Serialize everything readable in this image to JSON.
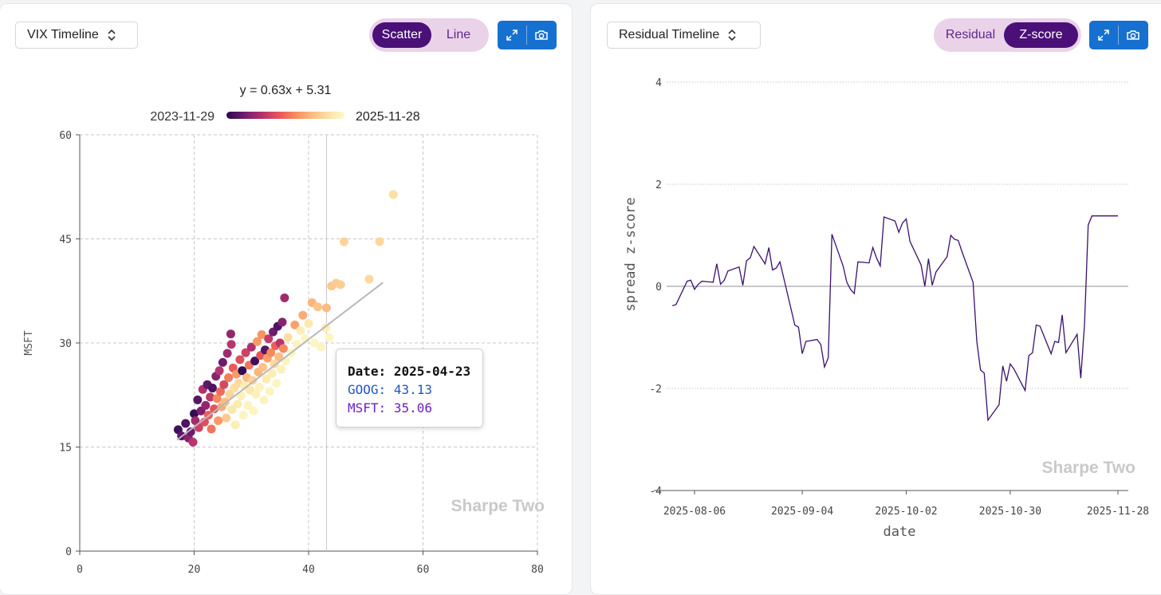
{
  "left": {
    "selector_label": "VIX Timeline",
    "toggle": {
      "options": [
        "Scatter",
        "Line"
      ],
      "active": "Scatter"
    },
    "watermark": "Sharpe Two",
    "colorbar": {
      "start_label": "2023-11-29",
      "end_label": "2025-11-28"
    },
    "tooltip": {
      "date_label": "Date:",
      "date_value": "2025-04-23",
      "x_label": "GOOG:",
      "x_value": "43.13",
      "y_label": "MSFT:",
      "y_value": "35.06"
    }
  },
  "right": {
    "selector_label": "Residual Timeline",
    "toggle": {
      "options": [
        "Residual",
        "Z-score"
      ],
      "active": "Z-score"
    },
    "watermark": "Sharpe Two"
  },
  "colors": {
    "accent": "#4a1078",
    "toolbar_blue": "#1670d0",
    "toggle_bg": "#ead2e9",
    "line": "#3b0f70",
    "regression_line": "#b7b7bd",
    "colorbar": [
      "#2a0a52",
      "#6b1a6e",
      "#b2326d",
      "#e8565b",
      "#f9925f",
      "#fdc187",
      "#fde9ad",
      "#fcf8c8"
    ]
  },
  "chart_data": [
    {
      "type": "scatter",
      "title": "y = 0.63x + 5.31",
      "xlabel": "",
      "ylabel": "MSFT",
      "xlim": [
        0,
        80
      ],
      "ylim": [
        0,
        60
      ],
      "xticks": [
        "0",
        "20",
        "40",
        "60",
        "80"
      ],
      "yticks": [
        "0",
        "15",
        "30",
        "45",
        "60"
      ],
      "grid": true,
      "legend": "top-center colorbar",
      "regression": {
        "slope": 0.63,
        "intercept": 5.31,
        "x_range": [
          17,
          53
        ]
      },
      "crosshair_x": 43.13,
      "points": [
        {
          "x": 17.2,
          "y": 17.5,
          "t": 0.05
        },
        {
          "x": 17.8,
          "y": 16.6,
          "t": 0.12
        },
        {
          "x": 18.5,
          "y": 18.4,
          "t": 0.08
        },
        {
          "x": 19.0,
          "y": 16.3,
          "t": 0.2
        },
        {
          "x": 19.4,
          "y": 17.2,
          "t": 0.15
        },
        {
          "x": 19.8,
          "y": 15.7,
          "t": 0.3
        },
        {
          "x": 20.0,
          "y": 19.8,
          "t": 0.02
        },
        {
          "x": 20.2,
          "y": 18.8,
          "t": 0.25
        },
        {
          "x": 20.6,
          "y": 21.8,
          "t": 0.1
        },
        {
          "x": 20.8,
          "y": 17.8,
          "t": 0.35
        },
        {
          "x": 21.2,
          "y": 20.2,
          "t": 0.18
        },
        {
          "x": 21.5,
          "y": 23.3,
          "t": 0.28
        },
        {
          "x": 21.8,
          "y": 18.6,
          "t": 0.4
        },
        {
          "x": 22.0,
          "y": 21.0,
          "t": 0.22
        },
        {
          "x": 22.3,
          "y": 24.0,
          "t": 0.12
        },
        {
          "x": 22.5,
          "y": 19.6,
          "t": 0.45
        },
        {
          "x": 22.8,
          "y": 22.2,
          "t": 0.32
        },
        {
          "x": 23.0,
          "y": 17.6,
          "t": 0.5
        },
        {
          "x": 23.2,
          "y": 23.5,
          "t": 0.08
        },
        {
          "x": 23.5,
          "y": 20.5,
          "t": 0.42
        },
        {
          "x": 23.8,
          "y": 25.2,
          "t": 0.2
        },
        {
          "x": 24.0,
          "y": 22.0,
          "t": 0.55
        },
        {
          "x": 24.2,
          "y": 18.8,
          "t": 0.6
        },
        {
          "x": 24.4,
          "y": 26.0,
          "t": 0.3
        },
        {
          "x": 24.6,
          "y": 23.0,
          "t": 0.48
        },
        {
          "x": 24.8,
          "y": 20.8,
          "t": 0.65
        },
        {
          "x": 25.0,
          "y": 27.2,
          "t": 0.15
        },
        {
          "x": 25.2,
          "y": 24.0,
          "t": 0.38
        },
        {
          "x": 25.4,
          "y": 21.5,
          "t": 0.7
        },
        {
          "x": 25.6,
          "y": 19.2,
          "t": 0.75
        },
        {
          "x": 25.8,
          "y": 28.5,
          "t": 0.25
        },
        {
          "x": 26.0,
          "y": 25.0,
          "t": 0.52
        },
        {
          "x": 26.2,
          "y": 22.6,
          "t": 0.78
        },
        {
          "x": 26.4,
          "y": 31.3,
          "t": 0.22
        },
        {
          "x": 26.5,
          "y": 29.8,
          "t": 0.3
        },
        {
          "x": 26.6,
          "y": 20.4,
          "t": 0.85
        },
        {
          "x": 26.8,
          "y": 26.4,
          "t": 0.44
        },
        {
          "x": 27.0,
          "y": 23.5,
          "t": 0.82
        },
        {
          "x": 27.2,
          "y": 18.2,
          "t": 0.9
        },
        {
          "x": 27.4,
          "y": 25.5,
          "t": 0.6
        },
        {
          "x": 27.6,
          "y": 21.2,
          "t": 0.88
        },
        {
          "x": 27.8,
          "y": 24.2,
          "t": 0.8
        },
        {
          "x": 28.0,
          "y": 27.6,
          "t": 0.4
        },
        {
          "x": 28.2,
          "y": 22.4,
          "t": 0.92
        },
        {
          "x": 28.4,
          "y": 26.0,
          "t": 0.02
        },
        {
          "x": 28.6,
          "y": 19.6,
          "t": 0.95
        },
        {
          "x": 28.8,
          "y": 23.8,
          "t": 0.9
        },
        {
          "x": 29.0,
          "y": 28.6,
          "t": 0.35
        },
        {
          "x": 29.2,
          "y": 25.0,
          "t": 0.7
        },
        {
          "x": 29.4,
          "y": 21.0,
          "t": 0.96
        },
        {
          "x": 29.6,
          "y": 26.8,
          "t": 0.5
        },
        {
          "x": 29.8,
          "y": 23.2,
          "t": 0.85
        },
        {
          "x": 30.0,
          "y": 29.4,
          "t": 0.28
        },
        {
          "x": 30.2,
          "y": 24.6,
          "t": 0.78
        },
        {
          "x": 30.4,
          "y": 20.2,
          "t": 0.97
        },
        {
          "x": 30.6,
          "y": 27.4,
          "t": 0.05
        },
        {
          "x": 30.8,
          "y": 22.6,
          "t": 0.93
        },
        {
          "x": 31.0,
          "y": 30.2,
          "t": 0.6
        },
        {
          "x": 31.2,
          "y": 25.8,
          "t": 0.68
        },
        {
          "x": 31.4,
          "y": 23.6,
          "t": 0.94
        },
        {
          "x": 31.6,
          "y": 28.2,
          "t": 0.42
        },
        {
          "x": 31.8,
          "y": 31.2,
          "t": 0.58
        },
        {
          "x": 32.0,
          "y": 26.5,
          "t": 0.72
        },
        {
          "x": 32.2,
          "y": 21.8,
          "t": 0.96
        },
        {
          "x": 32.4,
          "y": 29.0,
          "t": 0.1
        },
        {
          "x": 32.6,
          "y": 24.8,
          "t": 0.88
        },
        {
          "x": 32.8,
          "y": 27.8,
          "t": 0.62
        },
        {
          "x": 33.0,
          "y": 30.6,
          "t": 0.32
        },
        {
          "x": 33.2,
          "y": 23.0,
          "t": 0.95
        },
        {
          "x": 33.4,
          "y": 28.6,
          "t": 0.55
        },
        {
          "x": 33.6,
          "y": 25.6,
          "t": 0.9
        },
        {
          "x": 33.8,
          "y": 31.6,
          "t": 0.15
        },
        {
          "x": 34.0,
          "y": 27.0,
          "t": 0.8
        },
        {
          "x": 34.2,
          "y": 29.6,
          "t": 0.45
        },
        {
          "x": 34.4,
          "y": 24.2,
          "t": 0.97
        },
        {
          "x": 34.6,
          "y": 32.4,
          "t": 0.08
        },
        {
          "x": 34.8,
          "y": 28.0,
          "t": 0.7
        },
        {
          "x": 35.0,
          "y": 30.0,
          "t": 0.3
        },
        {
          "x": 35.2,
          "y": 26.2,
          "t": 0.93
        },
        {
          "x": 35.4,
          "y": 33.0,
          "t": 0.2
        },
        {
          "x": 35.6,
          "y": 29.2,
          "t": 0.55
        },
        {
          "x": 35.8,
          "y": 36.5,
          "t": 0.25
        },
        {
          "x": 36.0,
          "y": 27.4,
          "t": 0.96
        },
        {
          "x": 36.4,
          "y": 30.8,
          "t": 0.82
        },
        {
          "x": 37.0,
          "y": 28.6,
          "t": 0.97
        },
        {
          "x": 37.6,
          "y": 32.6,
          "t": 0.62
        },
        {
          "x": 38.0,
          "y": 29.8,
          "t": 0.95
        },
        {
          "x": 38.6,
          "y": 31.8,
          "t": 0.9
        },
        {
          "x": 39.0,
          "y": 34.0,
          "t": 0.65
        },
        {
          "x": 39.4,
          "y": 30.6,
          "t": 0.97
        },
        {
          "x": 40.0,
          "y": 32.8,
          "t": 0.86
        },
        {
          "x": 40.6,
          "y": 35.8,
          "t": 0.68
        },
        {
          "x": 41.0,
          "y": 30.0,
          "t": 0.98
        },
        {
          "x": 41.6,
          "y": 35.2,
          "t": 0.72
        },
        {
          "x": 42.2,
          "y": 29.4,
          "t": 0.97
        },
        {
          "x": 43.0,
          "y": 32.2,
          "t": 0.9
        },
        {
          "x": 43.13,
          "y": 35.06,
          "t": 0.7
        },
        {
          "x": 43.6,
          "y": 30.8,
          "t": 0.98
        },
        {
          "x": 44.0,
          "y": 38.2,
          "t": 0.74
        },
        {
          "x": 44.8,
          "y": 38.6,
          "t": 0.75
        },
        {
          "x": 45.6,
          "y": 38.4,
          "t": 0.76
        },
        {
          "x": 46.2,
          "y": 44.6,
          "t": 0.78
        },
        {
          "x": 50.6,
          "y": 39.2,
          "t": 0.8
        },
        {
          "x": 52.4,
          "y": 44.6,
          "t": 0.79
        },
        {
          "x": 54.8,
          "y": 51.4,
          "t": 0.82
        }
      ]
    },
    {
      "type": "line",
      "title": "",
      "xlabel": "date",
      "ylabel": "spread z-score",
      "ylim": [
        -4,
        4
      ],
      "yticks": [
        "4",
        "2",
        "0",
        "-2",
        "-4"
      ],
      "xticks": [
        "2025-08-06",
        "2025-09-04",
        "2025-10-02",
        "2025-10-30",
        "2025-11-28"
      ],
      "grid": true,
      "series": [
        {
          "x": [
            "2025-07-31",
            "2025-08-01",
            "2025-08-04",
            "2025-08-05",
            "2025-08-06",
            "2025-08-07",
            "2025-08-08",
            "2025-08-11",
            "2025-08-12",
            "2025-08-13",
            "2025-08-14",
            "2025-08-15",
            "2025-08-18",
            "2025-08-19",
            "2025-08-20",
            "2025-08-21",
            "2025-08-22",
            "2025-08-25",
            "2025-08-26",
            "2025-08-27",
            "2025-08-28",
            "2025-08-29",
            "2025-09-02",
            "2025-09-03",
            "2025-09-04",
            "2025-09-05",
            "2025-09-08",
            "2025-09-09",
            "2025-09-10",
            "2025-09-11",
            "2025-09-12",
            "2025-09-15",
            "2025-09-16",
            "2025-09-17",
            "2025-09-18",
            "2025-09-19",
            "2025-09-22",
            "2025-09-23",
            "2025-09-24",
            "2025-09-25",
            "2025-09-26",
            "2025-09-29",
            "2025-09-30",
            "2025-10-01",
            "2025-10-02",
            "2025-10-03",
            "2025-10-06",
            "2025-10-07",
            "2025-10-08",
            "2025-10-09",
            "2025-10-10",
            "2025-10-13",
            "2025-10-14",
            "2025-10-15",
            "2025-10-16",
            "2025-10-17",
            "2025-10-20",
            "2025-10-21",
            "2025-10-22",
            "2025-10-23",
            "2025-10-24",
            "2025-10-27",
            "2025-10-28",
            "2025-10-29",
            "2025-10-30",
            "2025-10-31",
            "2025-11-03",
            "2025-11-04",
            "2025-11-05",
            "2025-11-06",
            "2025-11-07",
            "2025-11-10",
            "2025-11-11",
            "2025-11-12",
            "2025-11-13",
            "2025-11-14",
            "2025-11-17",
            "2025-11-18",
            "2025-11-19",
            "2025-11-20",
            "2025-11-21",
            "2025-11-24",
            "2025-11-25",
            "2025-11-26",
            "2025-11-28"
          ],
          "values": [
            -0.38,
            -0.36,
            0.1,
            0.12,
            -0.06,
            0.04,
            0.1,
            0.08,
            0.44,
            0.04,
            0.12,
            0.3,
            0.38,
            0.02,
            0.5,
            0.56,
            0.78,
            0.44,
            0.76,
            0.32,
            0.36,
            0.48,
            -0.76,
            -0.8,
            -1.32,
            -1.08,
            -1.04,
            -1.14,
            -1.58,
            -1.4,
            1.02,
            0.4,
            0.08,
            -0.06,
            -0.14,
            0.48,
            0.46,
            0.76,
            0.56,
            0.4,
            1.36,
            1.28,
            1.06,
            1.24,
            1.32,
            0.88,
            0.42,
            0.0,
            0.54,
            0.02,
            0.28,
            0.58,
            1.0,
            0.92,
            0.9,
            0.68,
            0.08,
            -1.08,
            -1.64,
            -1.7,
            -2.62,
            -2.32,
            -1.56,
            -1.86,
            -1.52,
            -1.62,
            -2.04,
            -1.36,
            -1.3,
            -0.76,
            -0.78,
            -1.32,
            -1.08,
            -1.1,
            -0.56,
            -1.3,
            -0.94,
            -1.8,
            -0.74,
            1.2,
            1.38,
            1.38,
            1.38,
            1.38,
            1.38
          ]
        }
      ]
    }
  ]
}
